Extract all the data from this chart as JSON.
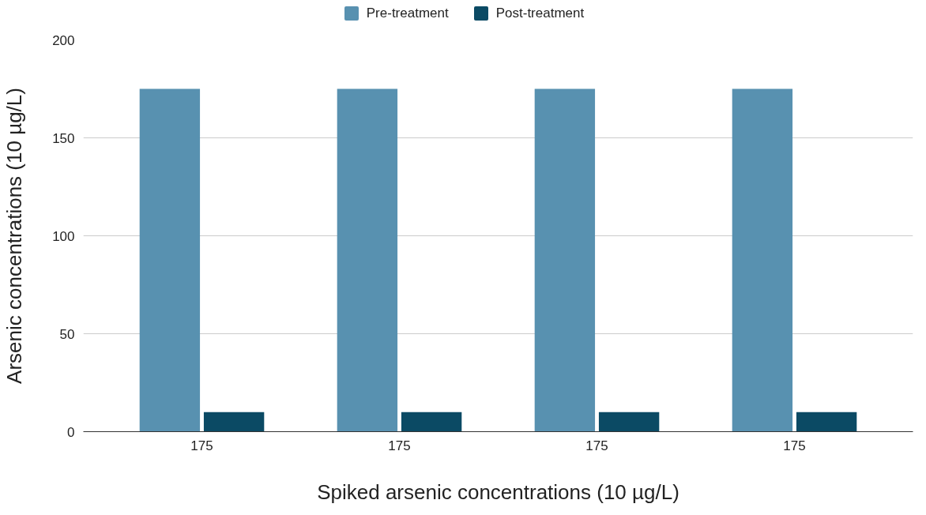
{
  "chart_data": {
    "type": "bar",
    "xlabel": "Spiked arsenic concentrations (10 µg/L)",
    "ylabel": "Arsenic concentrations (10 µg/L)",
    "categories": [
      "175",
      "175",
      "175",
      "175"
    ],
    "series": [
      {
        "name": "Pre-treatment",
        "color": "#5891b0",
        "values": [
          175,
          175,
          175,
          175
        ]
      },
      {
        "name": "Post-treatment",
        "color": "#0b4a64",
        "values": [
          10,
          10,
          10,
          10
        ]
      }
    ],
    "ylim": [
      0,
      200
    ],
    "yticks": [
      0,
      50,
      100,
      150,
      200
    ],
    "grid": "y",
    "legend": "top"
  }
}
